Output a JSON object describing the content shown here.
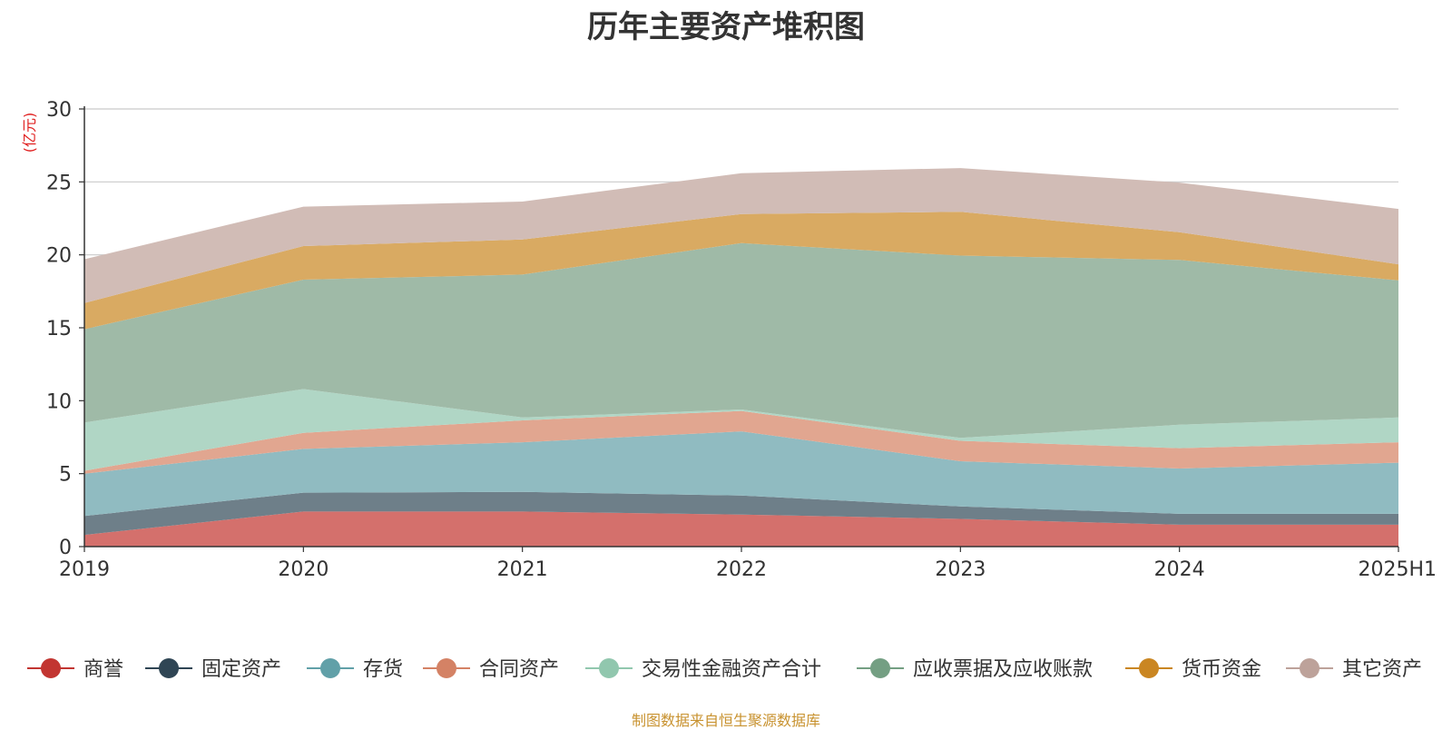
{
  "chart_data": {
    "type": "area",
    "stacked": true,
    "title": "历年主要资产堆积图",
    "y_unit": "(亿元)",
    "ylim": [
      0,
      30
    ],
    "yticks": [
      0,
      5,
      10,
      15,
      20,
      25,
      30
    ],
    "grid": true,
    "legend_position": "bottom",
    "categories": [
      "2019",
      "2020",
      "2021",
      "2022",
      "2023",
      "2024",
      "2025H1"
    ],
    "series": [
      {
        "name": "商誉",
        "color": "#c23531",
        "fill": "#d4706c",
        "values": [
          0.8,
          2.4,
          2.4,
          2.2,
          1.9,
          1.5,
          1.5
        ]
      },
      {
        "name": "固定资产",
        "color": "#2f4554",
        "fill": "#6e7f89",
        "values": [
          1.3,
          1.3,
          1.35,
          1.3,
          0.85,
          0.75,
          0.75
        ]
      },
      {
        "name": "存货",
        "color": "#61a0a8",
        "fill": "#90bbc1",
        "values": [
          2.9,
          3.0,
          3.4,
          4.4,
          3.1,
          3.1,
          3.5
        ]
      },
      {
        "name": "合同资产",
        "color": "#d48265",
        "fill": "#e1a690",
        "values": [
          0.2,
          1.1,
          1.5,
          1.4,
          1.4,
          1.4,
          1.4
        ]
      },
      {
        "name": "交易性金融资产合计",
        "color": "#91c7ae",
        "fill": "#b0d6c5",
        "values": [
          3.3,
          3.0,
          0.2,
          0.1,
          0.2,
          1.6,
          1.7
        ]
      },
      {
        "name": "应收票据及应收账款",
        "color": "#749f83",
        "fill": "#9fbaa7",
        "values": [
          6.4,
          7.5,
          9.8,
          11.4,
          12.5,
          11.3,
          9.4
        ]
      },
      {
        "name": "货币资金",
        "color": "#ca8622",
        "fill": "#d9aa62",
        "values": [
          1.8,
          2.3,
          2.4,
          2.0,
          3.0,
          1.9,
          1.1
        ]
      },
      {
        "name": "其它资产",
        "color": "#bda29a",
        "fill": "#d1bcb6",
        "values": [
          3.0,
          2.7,
          2.6,
          2.8,
          3.0,
          3.4,
          3.8
        ]
      }
    ]
  },
  "footer": "制图数据来自恒生聚源数据库"
}
